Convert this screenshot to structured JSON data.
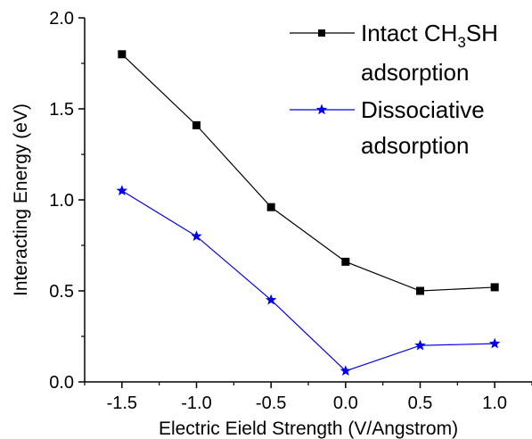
{
  "chart_data": {
    "type": "line",
    "title": "",
    "xlabel": "Electric Eield Strength (V/Angstrom)",
    "ylabel": "Interacting Energy (eV)",
    "xlim": [
      -1.75,
      1.25
    ],
    "ylim": [
      0.0,
      2.0
    ],
    "x": [
      -1.5,
      -1.0,
      -0.5,
      0.0,
      0.5,
      1.0
    ],
    "x_tick_labels": [
      "-1.5",
      "-1.0",
      "-0.5",
      "0.0",
      "0.5",
      "1.0"
    ],
    "y_ticks": [
      0.0,
      0.5,
      1.0,
      1.5,
      2.0
    ],
    "y_tick_labels": [
      "0.0",
      "0.5",
      "1.0",
      "1.5",
      "2.0"
    ],
    "grid": false,
    "legend_position": "top-right",
    "series": [
      {
        "legend_lines": [
          "Intact CH",
          "3",
          "SH",
          "adsorption"
        ],
        "marker": "square",
        "color": "#000000",
        "values": [
          1.8,
          1.41,
          0.96,
          0.66,
          0.5,
          0.52
        ]
      },
      {
        "legend_lines": [
          "Dissociative",
          "adsorption"
        ],
        "marker": "star",
        "color": "#0000ee",
        "values": [
          1.05,
          0.8,
          0.45,
          0.06,
          0.2,
          0.21
        ]
      }
    ]
  }
}
